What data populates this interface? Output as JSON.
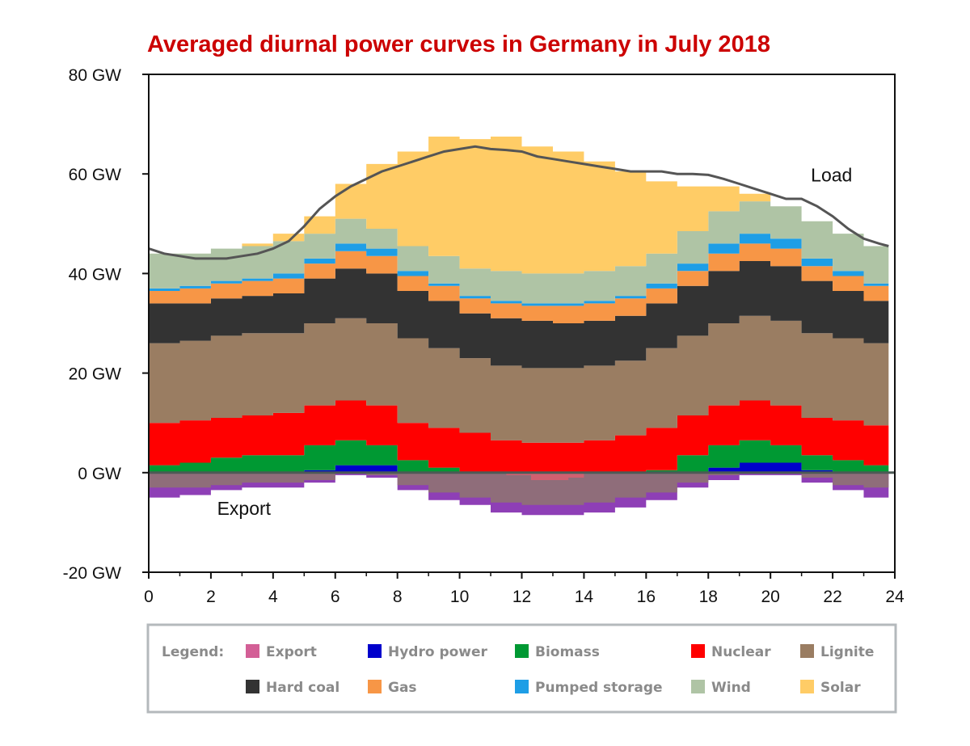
{
  "chart_data": {
    "type": "area",
    "title": "Averaged diurnal power curves in Germany in July 2018",
    "title_color": "#cc0000",
    "xlabel": "",
    "ylabel": "",
    "xlim": [
      0,
      24
    ],
    "ylim": [
      -20,
      80
    ],
    "x_ticks": [
      0,
      2,
      4,
      6,
      8,
      10,
      12,
      14,
      16,
      18,
      20,
      22,
      24
    ],
    "y_ticks": [
      {
        "value": 80,
        "label": "80 GW"
      },
      {
        "value": 60,
        "label": "60 GW"
      },
      {
        "value": 40,
        "label": "40 GW"
      },
      {
        "value": 20,
        "label": "20 GW"
      },
      {
        "value": 0,
        "label": "0 GW"
      },
      {
        "value": -20,
        "label": "-20 GW"
      }
    ],
    "grid": false,
    "x": [
      0,
      1,
      2,
      3,
      4,
      5,
      6,
      7,
      8,
      9,
      10,
      11,
      12,
      13,
      14,
      15,
      16,
      17,
      18,
      19,
      20,
      21,
      22,
      23,
      23.8
    ],
    "series": [
      {
        "name": "Hydro power",
        "color": "#0000cc",
        "values": [
          0,
          0,
          0,
          0,
          0,
          0.5,
          1.5,
          1.5,
          0,
          0,
          0,
          0,
          0,
          0,
          0,
          0,
          0,
          0,
          1.0,
          2.0,
          2.0,
          0.5,
          0,
          0,
          0
        ]
      },
      {
        "name": "Biomass",
        "color": "#009933",
        "values": [
          1.5,
          2.0,
          3.0,
          3.5,
          3.5,
          5.0,
          5.0,
          4.0,
          2.5,
          1.0,
          0,
          0,
          0,
          0,
          0,
          0,
          0.5,
          3.5,
          4.5,
          4.5,
          3.5,
          3.0,
          2.5,
          1.5,
          1.5
        ]
      },
      {
        "name": "Nuclear",
        "color": "#ff0000",
        "values": [
          8.5,
          8.5,
          8.0,
          8.0,
          8.5,
          8.0,
          8.0,
          8.0,
          7.5,
          8.0,
          8.0,
          6.5,
          6.0,
          6.0,
          6.5,
          7.5,
          8.5,
          8.0,
          8.0,
          8.0,
          8.0,
          7.5,
          8.0,
          8.0,
          8.5
        ]
      },
      {
        "name": "Lignite",
        "color": "#9a7d62",
        "values": [
          16.0,
          16.0,
          16.5,
          16.5,
          16.0,
          16.5,
          16.5,
          16.5,
          17.0,
          16.0,
          15.0,
          15.0,
          15.0,
          15.0,
          15.0,
          15.0,
          16.0,
          16.0,
          16.5,
          17.0,
          17.0,
          17.0,
          16.5,
          16.5,
          16.0
        ]
      },
      {
        "name": "Hard coal",
        "color": "#333333",
        "values": [
          8.0,
          7.5,
          7.5,
          7.5,
          8.0,
          9.0,
          10.0,
          10.0,
          9.5,
          9.5,
          9.0,
          9.5,
          9.5,
          9.0,
          9.0,
          9.0,
          9.0,
          10.0,
          10.5,
          11.0,
          11.0,
          10.5,
          9.5,
          8.5,
          8.5
        ]
      },
      {
        "name": "Gas",
        "color": "#f79646",
        "values": [
          2.5,
          3.0,
          3.0,
          3.0,
          3.0,
          3.0,
          3.5,
          3.5,
          3.0,
          3.0,
          3.0,
          3.0,
          3.0,
          3.5,
          3.5,
          3.5,
          3.0,
          3.0,
          3.5,
          3.5,
          3.5,
          3.0,
          3.0,
          3.0,
          3.0
        ]
      },
      {
        "name": "Pumped storage",
        "color": "#1e9ee6",
        "values": [
          0.5,
          0.5,
          0.5,
          0.5,
          1.0,
          1.0,
          1.5,
          1.5,
          1.0,
          0.5,
          0.5,
          0.5,
          0.5,
          0.5,
          0.5,
          0.5,
          1.0,
          1.5,
          2.0,
          2.0,
          2.0,
          1.5,
          1.0,
          0.5,
          0.5
        ]
      },
      {
        "name": "Wind",
        "color": "#afc4a5",
        "values": [
          7.0,
          6.5,
          6.5,
          6.5,
          6.5,
          5.0,
          5.0,
          4.0,
          5.0,
          5.5,
          5.5,
          6.0,
          6.0,
          6.0,
          6.0,
          6.0,
          6.0,
          6.5,
          6.5,
          6.5,
          6.5,
          7.5,
          7.5,
          7.5,
          7.5
        ]
      },
      {
        "name": "Solar",
        "color": "#ffcc66",
        "values": [
          0,
          0,
          0,
          0.5,
          1.5,
          3.5,
          7.0,
          13.0,
          19.0,
          24.0,
          26.0,
          27.0,
          25.5,
          24.5,
          22.0,
          19.0,
          14.5,
          9.0,
          5.0,
          1.5,
          0,
          0,
          0,
          0,
          0
        ]
      },
      {
        "name": "Export",
        "color": "#8e3fb6",
        "values": [
          -5.0,
          -4.5,
          -3.5,
          -3.0,
          -3.0,
          -2.0,
          -0.5,
          -1.0,
          -3.5,
          -5.5,
          -6.5,
          -8.0,
          -8.5,
          -8.5,
          -8.0,
          -7.0,
          -5.5,
          -3.0,
          -1.5,
          -0.5,
          -0.5,
          -2.0,
          -3.5,
          -5.0,
          -4.5
        ]
      }
    ],
    "export_inner": {
      "color": "#8f6d7a",
      "values": [
        -3.0,
        -3.0,
        -2.5,
        -2.0,
        -2.0,
        -1.5,
        0,
        -0.5,
        -2.5,
        -4.0,
        -5.0,
        -6.0,
        -6.5,
        -6.5,
        -6.0,
        -5.0,
        -4.0,
        -2.0,
        -0.5,
        0,
        0,
        -1.0,
        -2.5,
        -3.0,
        -3.0
      ]
    },
    "export_red_band": {
      "color": "#d06070",
      "x": [
        11.5,
        12.3,
        13.0,
        13.5,
        14.0
      ],
      "values": [
        -0.5,
        -1.5,
        -1.5,
        -1.0,
        -0.5
      ]
    },
    "load": {
      "name": "Load",
      "color": "#555555",
      "x": [
        0,
        0.5,
        1,
        1.5,
        2,
        2.5,
        3,
        3.5,
        4,
        4.5,
        5,
        5.5,
        6,
        6.5,
        7,
        7.5,
        8,
        8.5,
        9,
        9.5,
        10,
        10.5,
        11,
        11.5,
        12,
        12.5,
        13,
        13.5,
        14,
        14.5,
        15,
        15.5,
        16,
        16.5,
        17,
        17.5,
        18,
        18.5,
        19,
        19.5,
        20,
        20.5,
        21,
        21.5,
        22,
        22.5,
        23,
        23.5,
        23.8
      ],
      "values": [
        45.0,
        44.0,
        43.5,
        43.0,
        43.0,
        43.0,
        43.5,
        44.0,
        45.0,
        46.5,
        49.5,
        53.0,
        55.5,
        57.5,
        59.0,
        60.5,
        61.5,
        62.5,
        63.5,
        64.5,
        65.0,
        65.5,
        65.0,
        64.8,
        64.5,
        63.5,
        63.0,
        62.5,
        62.0,
        61.5,
        61.0,
        60.5,
        60.5,
        60.5,
        60.0,
        60.0,
        59.8,
        59.0,
        58.0,
        57.0,
        56.0,
        55.0,
        55.0,
        53.5,
        51.5,
        49.0,
        47.0,
        46.0,
        45.5
      ]
    },
    "annotations": [
      {
        "text": "Load",
        "x": 21.3,
        "y": 58.5
      },
      {
        "text": "Export",
        "x": 2.2,
        "y": -8.5
      }
    ],
    "legend": {
      "title": "Legend:",
      "placement": "bottom",
      "entries": [
        {
          "name": "Export",
          "color": "#d35f96"
        },
        {
          "name": "Hydro power",
          "color": "#0000cc"
        },
        {
          "name": "Biomass",
          "color": "#009933"
        },
        {
          "name": "Nuclear",
          "color": "#ff0000"
        },
        {
          "name": "Lignite",
          "color": "#9a7d62"
        },
        {
          "name": "Hard coal",
          "color": "#333333"
        },
        {
          "name": "Gas",
          "color": "#f79646"
        },
        {
          "name": "Pumped storage",
          "color": "#1e9ee6"
        },
        {
          "name": "Wind",
          "color": "#afc4a5"
        },
        {
          "name": "Solar",
          "color": "#ffcc66"
        }
      ]
    }
  }
}
